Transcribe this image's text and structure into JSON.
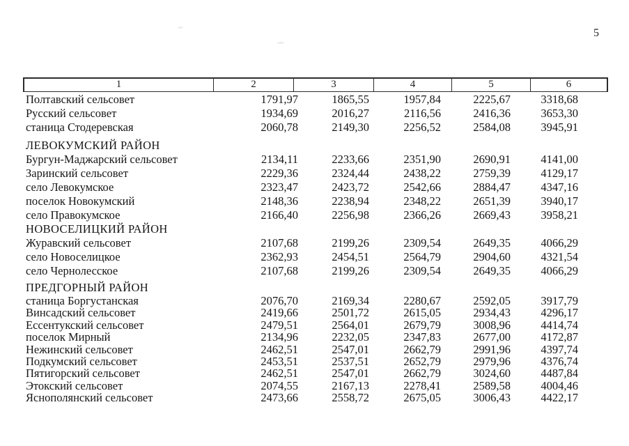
{
  "page": {
    "number": "5"
  },
  "table": {
    "header": [
      "1",
      "2",
      "3",
      "4",
      "5",
      "6"
    ],
    "sections": [
      {
        "title": "",
        "rows": [
          {
            "name": "Полтавский сельсовет",
            "values": [
              "1791,97",
              "1865,55",
              "1957,84",
              "2225,67",
              "3318,68"
            ]
          },
          {
            "name": "Русский сельсовет",
            "values": [
              "1934,69",
              "2016,27",
              "2116,56",
              "2416,36",
              "3653,30"
            ]
          },
          {
            "name": "станица Стодеревская",
            "values": [
              "2060,78",
              "2149,30",
              "2256,52",
              "2584,08",
              "3945,91"
            ]
          }
        ]
      },
      {
        "title": "ЛЕВОКУМСКИЙ РАЙОН",
        "rows": [
          {
            "name": "Бургун-Маджарский сельсовет",
            "values": [
              "2134,11",
              "2233,66",
              "2351,90",
              "2690,91",
              "4141,00"
            ]
          },
          {
            "name": "Заринский сельсовет",
            "values": [
              "2229,36",
              "2324,44",
              "2438,22",
              "2759,39",
              "4129,17"
            ]
          },
          {
            "name": "село Левокумское",
            "values": [
              "2323,47",
              "2423,72",
              "2542,66",
              "2884,47",
              "4347,16"
            ]
          },
          {
            "name": "поселок Новокумский",
            "values": [
              "2148,36",
              "2238,94",
              "2348,22",
              "2651,39",
              "3940,17"
            ]
          },
          {
            "name": "село Правокумское",
            "values": [
              "2166,40",
              "2256,98",
              "2366,26",
              "2669,43",
              "3958,21"
            ]
          }
        ]
      },
      {
        "title": "НОВОСЕЛИЦКИЙ РАЙОН",
        "rows": [
          {
            "name": "Журавский сельсовет",
            "values": [
              "2107,68",
              "2199,26",
              "2309,54",
              "2649,35",
              "4066,29"
            ]
          },
          {
            "name": "село Новоселицкое",
            "values": [
              "2362,93",
              "2454,51",
              "2564,79",
              "2904,60",
              "4321,54"
            ]
          },
          {
            "name": "село Чернолесское",
            "values": [
              "2107,68",
              "2199,26",
              "2309,54",
              "2649,35",
              "4066,29"
            ]
          }
        ]
      },
      {
        "title": "ПРЕДГОРНЫЙ РАЙОН",
        "rows": [
          {
            "name": "станица Боргустанская",
            "values": [
              "2076,70",
              "2169,34",
              "2280,67",
              "2592,05",
              "3917,79"
            ]
          },
          {
            "name": "Винсадский сельсовет",
            "values": [
              "2419,66",
              "2501,72",
              "2615,05",
              "2934,43",
              "4296,17"
            ]
          },
          {
            "name": "Ессентукский сельсовет",
            "values": [
              "2479,51",
              "2564,01",
              "2679,79",
              "3008,96",
              "4414,74"
            ]
          },
          {
            "name": "поселок Мирный",
            "values": [
              "2134,96",
              "2232,05",
              "2347,83",
              "2677,00",
              "4172,87"
            ]
          },
          {
            "name": "Нежинский сельсовет",
            "values": [
              "2462,51",
              "2547,01",
              "2662,79",
              "2991,96",
              "4397,74"
            ]
          },
          {
            "name": "Подкумский сельсовет",
            "values": [
              "2453,51",
              "2537,51",
              "2652,79",
              "2979,96",
              "4376,74"
            ]
          },
          {
            "name": "Пятигорский сельсовет",
            "values": [
              "2462,51",
              "2547,01",
              "2662,79",
              "3024,60",
              "4487,84"
            ]
          },
          {
            "name": "Этокский сельсовет",
            "values": [
              "2074,55",
              "2167,13",
              "2278,41",
              "2589,58",
              "4004,46"
            ]
          },
          {
            "name": "Яснополянский сельсовет",
            "values": [
              "2473,66",
              "2558,72",
              "2675,05",
              "3006,43",
              "4422,17"
            ]
          }
        ]
      }
    ]
  },
  "colors": {
    "text": "#161616",
    "table_border": "#2c2c2c",
    "paper": "#ffffff"
  }
}
